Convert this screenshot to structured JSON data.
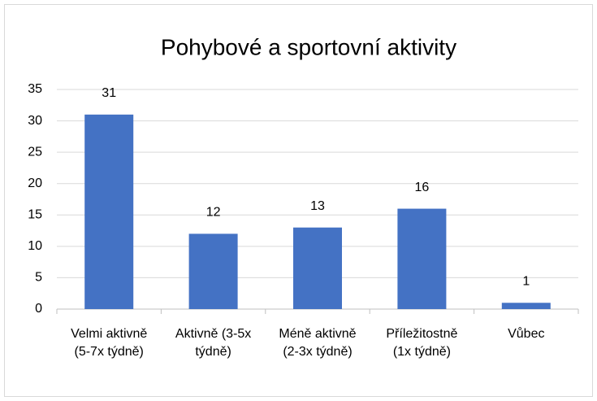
{
  "chart_data": {
    "type": "bar",
    "title": "Pohybové a sportovní aktivity",
    "categories": [
      "Velmi aktivně (5-7x týdně)",
      "Aktivně (3-5x týdně)",
      "Méně aktivně (2-3x týdně)",
      "Příležitostně (1x týdně)",
      "Vůbec"
    ],
    "values": [
      31,
      12,
      13,
      16,
      1
    ],
    "color": "#4472c4",
    "ylim": [
      0,
      35
    ],
    "yticks": [
      0,
      5,
      10,
      15,
      20,
      25,
      30,
      35
    ],
    "grid": true
  }
}
